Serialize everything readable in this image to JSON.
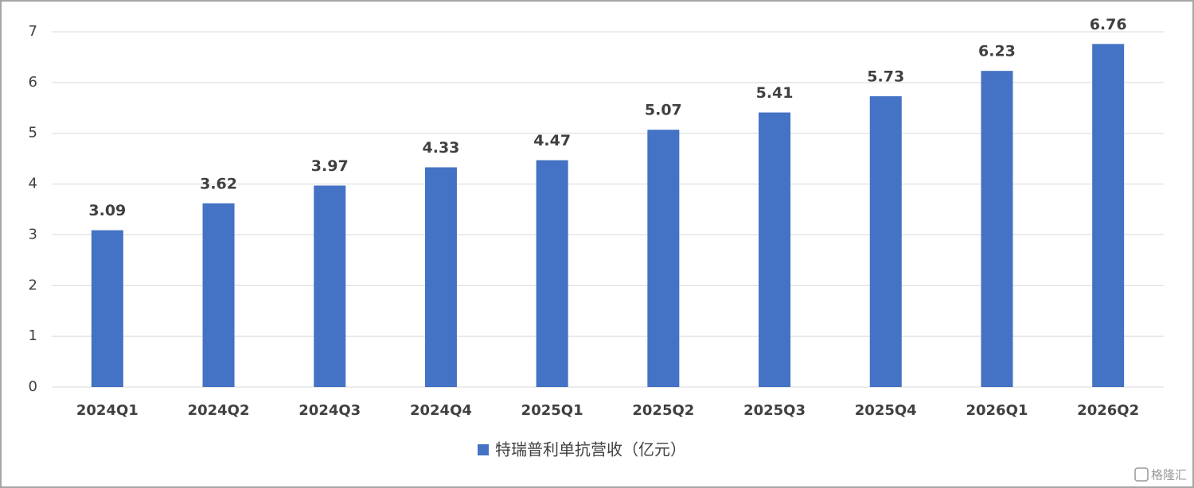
{
  "chart_data": {
    "type": "bar",
    "categories": [
      "2024Q1",
      "2024Q2",
      "2024Q3",
      "2024Q4",
      "2025Q1",
      "2025Q2",
      "2025Q3",
      "2025Q4",
      "2026Q1",
      "2026Q2"
    ],
    "series": [
      {
        "name": "特瑞普利单抗营收（亿元）",
        "color": "#4472c4",
        "values": [
          3.09,
          3.62,
          3.97,
          4.33,
          4.47,
          5.07,
          5.41,
          5.73,
          6.23,
          6.76
        ]
      }
    ],
    "ylim": [
      0,
      7
    ],
    "yticks": [
      0,
      1,
      2,
      3,
      4,
      5,
      6,
      7
    ],
    "grid": true,
    "legend": "bottom",
    "watermark": "格隆汇"
  }
}
